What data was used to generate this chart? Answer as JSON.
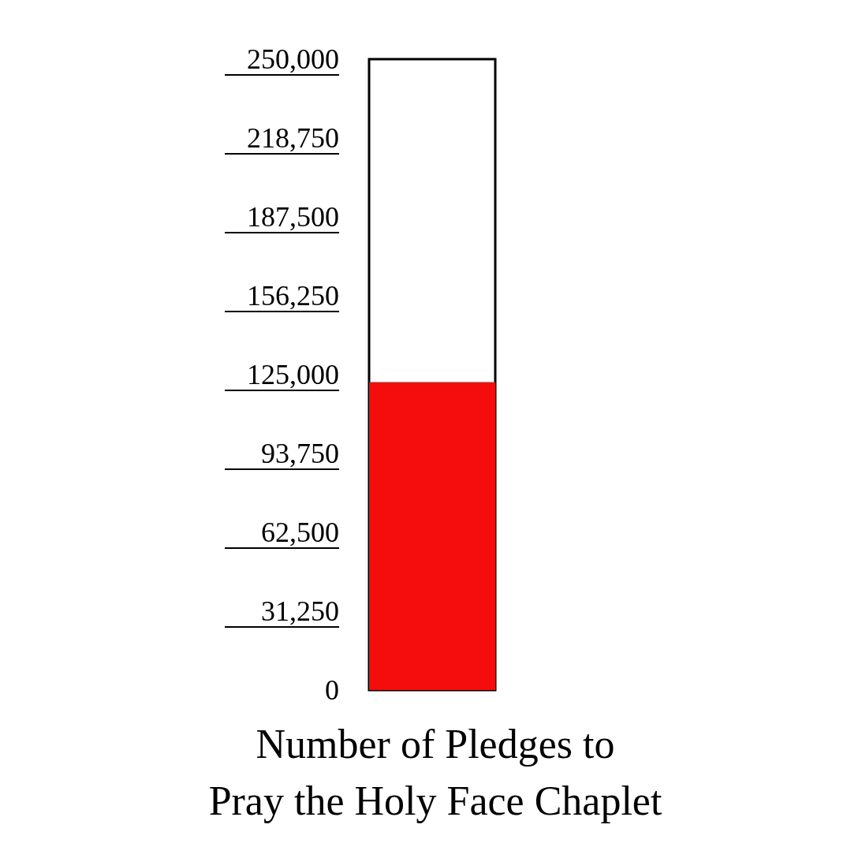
{
  "chart_data": {
    "type": "bar",
    "title": "Number of Pledges to\nPray the Holy Face Chaplet",
    "categories": [
      null
    ],
    "values": [
      122000
    ],
    "color": "#f50d0d",
    "ylim": [
      0,
      250000
    ],
    "yticks": [
      {
        "value": 0,
        "label": "0"
      },
      {
        "value": 31250,
        "label": "31,250"
      },
      {
        "value": 62500,
        "label": "62,500"
      },
      {
        "value": 93750,
        "label": "93,750"
      },
      {
        "value": 125000,
        "label": "125,000"
      },
      {
        "value": 156250,
        "label": "156,250"
      },
      {
        "value": 187500,
        "label": "187,500"
      },
      {
        "value": 218750,
        "label": "218,750"
      },
      {
        "value": 250000,
        "label": "250,000"
      }
    ]
  }
}
